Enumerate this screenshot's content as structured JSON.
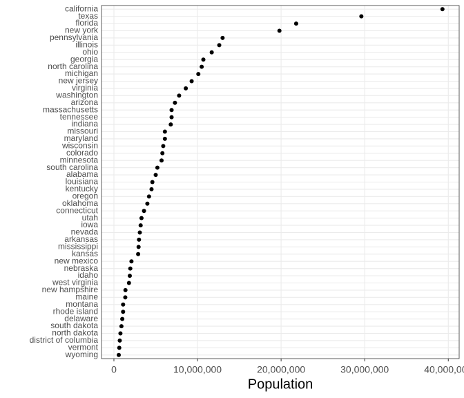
{
  "chart_data": {
    "type": "dot",
    "x_label": "Population",
    "categories": [
      "california",
      "texas",
      "florida",
      "new york",
      "pennsylvania",
      "illinois",
      "ohio",
      "georgia",
      "north carolina",
      "michigan",
      "new jersey",
      "virginia",
      "washington",
      "arizona",
      "massachusetts",
      "tennessee",
      "indiana",
      "missouri",
      "maryland",
      "wisconsin",
      "colorado",
      "minnesota",
      "south carolina",
      "alabama",
      "louisiana",
      "kentucky",
      "oregon",
      "oklahoma",
      "connecticut",
      "utah",
      "iowa",
      "nevada",
      "arkansas",
      "mississippi",
      "kansas",
      "new mexico",
      "nebraska",
      "idaho",
      "west virginia",
      "new hampshire",
      "maine",
      "montana",
      "rhode island",
      "delaware",
      "south dakota",
      "north dakota",
      "district of columbia",
      "vermont",
      "wyoming"
    ],
    "values": [
      39300000,
      29600000,
      21800000,
      19800000,
      13000000,
      12600000,
      11700000,
      10700000,
      10500000,
      10100000,
      9300000,
      8600000,
      7800000,
      7300000,
      6900000,
      6900000,
      6800000,
      6100000,
      6100000,
      5900000,
      5800000,
      5700000,
      5200000,
      5000000,
      4600000,
      4500000,
      4200000,
      4000000,
      3600000,
      3300000,
      3200000,
      3100000,
      3000000,
      2950000,
      2900000,
      2100000,
      1960000,
      1900000,
      1800000,
      1380000,
      1360000,
      1100000,
      1100000,
      1000000,
      900000,
      780000,
      700000,
      640000,
      580000
    ],
    "color": "#000000",
    "xlim": [
      -1485000,
      41300000
    ],
    "xticks": [
      0,
      {
        "value": 10000000,
        "label": "10,000,000"
      },
      {
        "value": 20000000,
        "label": "20,000,000"
      },
      {
        "value": 30000000,
        "label": "30,000,000"
      },
      {
        "value": 40000000,
        "label": "40,000,000"
      }
    ],
    "grid": true
  }
}
